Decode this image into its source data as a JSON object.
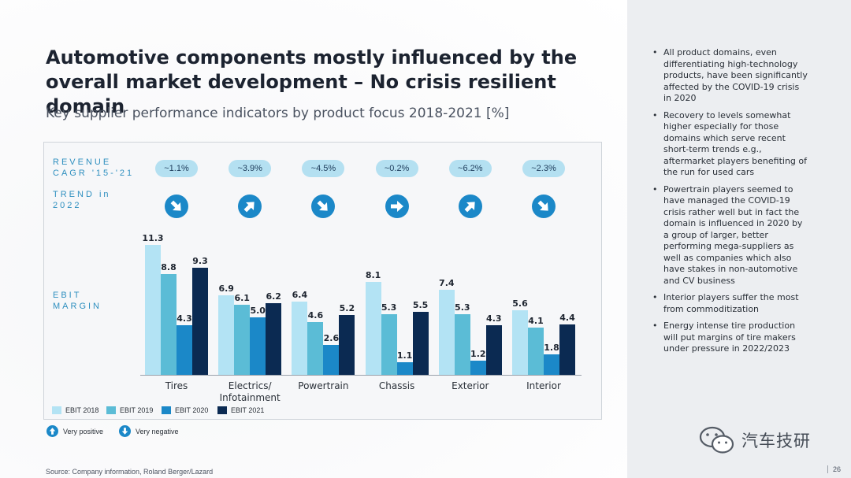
{
  "title": "Automotive components mostly influenced by the overall market development – No crisis resilient domain",
  "subtitle": "Key supplier performance indicators by product focus 2018-2021 [%]",
  "row_labels": {
    "revenue_cagr": "REVENUE CAGR '15-'21",
    "trend": "TREND in 2022",
    "ebit_margin": "EBIT MARGIN"
  },
  "chart_data": {
    "type": "bar",
    "categories": [
      "Tires",
      "Electrics/ Infotainment",
      "Powertrain",
      "Chassis",
      "Exterior",
      "Interior"
    ],
    "series": [
      {
        "name": "EBIT 2018",
        "color": "#b3e3f4",
        "values": [
          11.3,
          6.9,
          6.4,
          8.1,
          7.4,
          5.6
        ]
      },
      {
        "name": "EBIT 2019",
        "color": "#5bbcd6",
        "values": [
          8.8,
          6.1,
          4.6,
          5.3,
          5.3,
          4.1
        ]
      },
      {
        "name": "EBIT 2020",
        "color": "#1b88c8",
        "values": [
          4.3,
          5.0,
          2.6,
          1.1,
          1.2,
          1.8
        ]
      },
      {
        "name": "EBIT 2021",
        "color": "#0b2a52",
        "values": [
          9.3,
          6.2,
          5.2,
          5.5,
          4.3,
          4.4
        ]
      }
    ],
    "value_labels": [
      [
        "11.3",
        "8.8",
        "4.3",
        "9.3"
      ],
      [
        "6.9",
        "6.1",
        "5.0",
        "6.2"
      ],
      [
        "6.4",
        "4.6",
        "2.6",
        "5.2"
      ],
      [
        "8.1",
        "5.3",
        "1.1",
        "5.5"
      ],
      [
        "7.4",
        "5.3",
        "1.2",
        "4.3"
      ],
      [
        "5.6",
        "4.1",
        "1.8",
        "4.4"
      ]
    ],
    "revenue_cagr": [
      "~1.1%",
      "~3.9%",
      "~4.5%",
      "~0.2%",
      "~6.2%",
      "~2.3%"
    ],
    "trend_2022": [
      "down-right",
      "up-right",
      "down-right",
      "right",
      "up-right",
      "down-right"
    ],
    "ylim": [
      0,
      12
    ],
    "legend_position": "bottom-left"
  },
  "key": {
    "very_positive": "Very positive",
    "very_negative": "Very negative"
  },
  "notes": [
    "All product domains, even differentiating high-technology products, have been significantly affected by the COVID-19 crisis in 2020",
    "Recovery to levels somewhat higher especially for those domains which serve recent short-term trends e.g., aftermarket players benefiting of the run for used cars",
    "Powertrain players seemed to have managed the COVID-19 crisis rather well but in fact the domain is influenced in 2020 by a group of larger, better performing mega-suppliers as well as companies which also have stakes in non-automotive and CV business",
    "Interior players suffer the most from commoditization",
    "Energy intense tire production will put margins of tire makers under pressure in 2022/2023"
  ],
  "source": "Source: Company information, Roland Berger/Lazard",
  "watermark_text": "汽车技研",
  "page_number": "26",
  "colors": {
    "accent": "#2e8fbf",
    "pill": "#b4e0f1",
    "icon": "#1b88c8"
  }
}
